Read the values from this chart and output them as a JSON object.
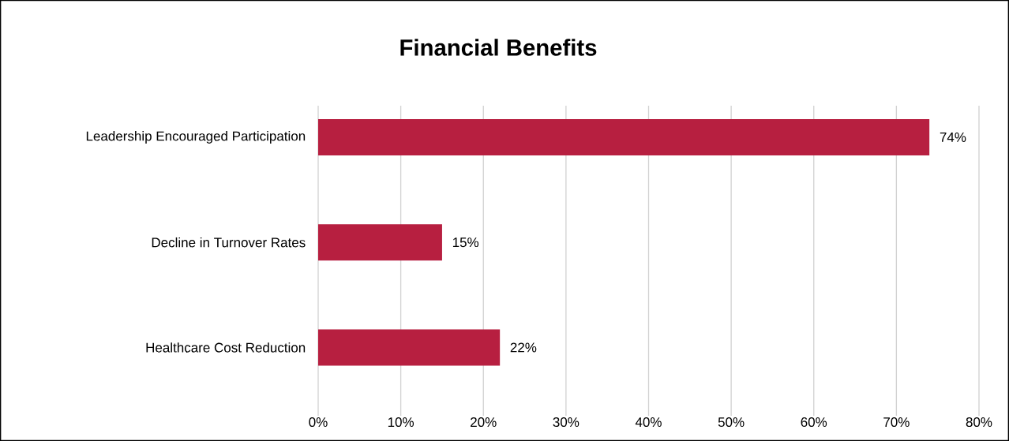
{
  "chart_data": {
    "type": "bar",
    "orientation": "horizontal",
    "title": "Financial Benefits",
    "categories": [
      "Leadership Encouraged Participation",
      "Decline in Turnover Rates",
      "Healthcare Cost Reduction"
    ],
    "values": [
      74,
      15,
      22
    ],
    "value_labels": [
      "74%",
      "15%",
      "22%"
    ],
    "color": "#b71f40",
    "xlim": [
      0,
      80
    ],
    "xticks": [
      {
        "value": 0,
        "label": "0%"
      },
      {
        "value": 10,
        "label": "10%"
      },
      {
        "value": 20,
        "label": "20%"
      },
      {
        "value": 30,
        "label": "30%"
      },
      {
        "value": 40,
        "label": "40%"
      },
      {
        "value": 50,
        "label": "50%"
      },
      {
        "value": 60,
        "label": "60%"
      },
      {
        "value": 70,
        "label": "70%"
      },
      {
        "value": 80,
        "label": "80%"
      }
    ],
    "grid": "x"
  }
}
